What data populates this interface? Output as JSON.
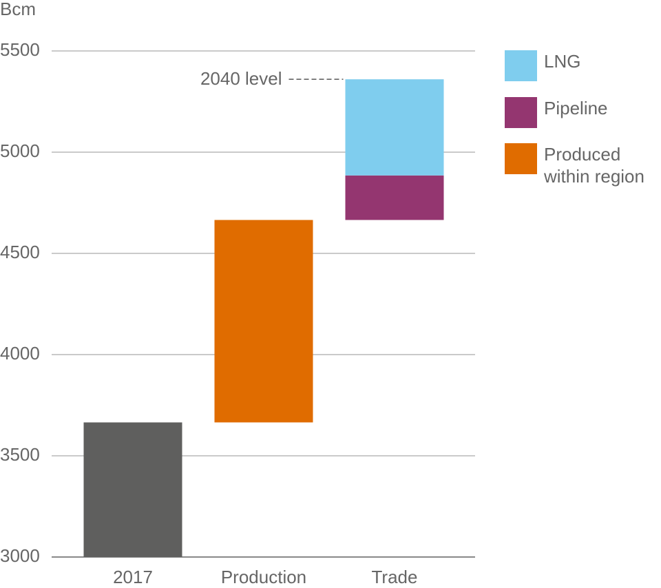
{
  "chart_data": {
    "type": "waterfall",
    "y_label": "Bcm",
    "categories": [
      "2017",
      "Production",
      "Trade"
    ],
    "base_values": [
      3665,
      null,
      null
    ],
    "base_color": "#5f5f5e",
    "series": [
      {
        "name": "LNG",
        "color": "#7fcdee",
        "values": [
          null,
          null,
          475
        ]
      },
      {
        "name": "Pipeline",
        "color": "#943670",
        "values": [
          null,
          null,
          220
        ]
      },
      {
        "name": "Produced within region",
        "color": "#e06c00",
        "values": [
          null,
          1000,
          null
        ]
      }
    ],
    "annotation": "2040 level",
    "ylim": [
      3000,
      5500
    ],
    "yticks": [
      3000,
      3500,
      4000,
      4500,
      5000,
      5500
    ],
    "grid": true,
    "legend": "right"
  }
}
